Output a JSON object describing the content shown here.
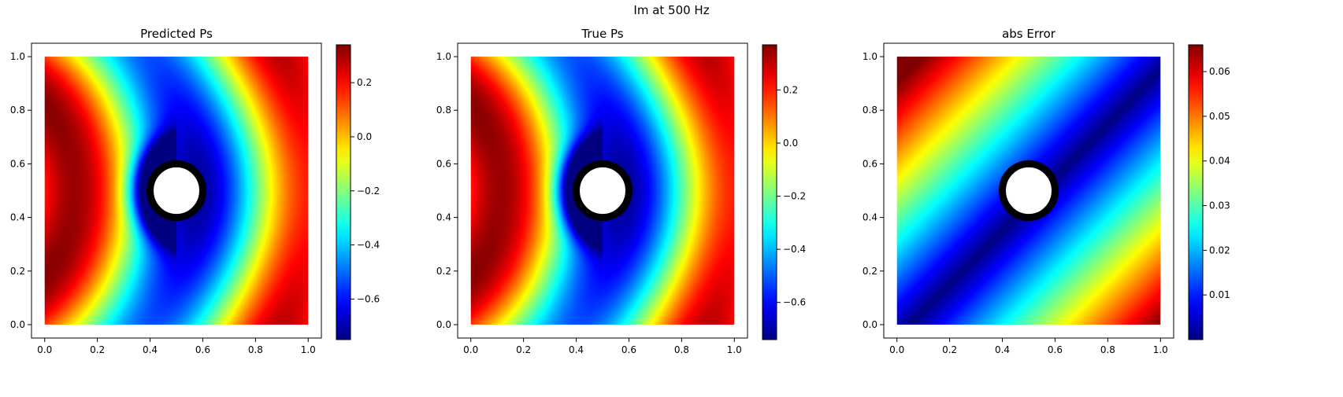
{
  "figure": {
    "suptitle": "Im at 500 Hz"
  },
  "chart_data": [
    {
      "type": "heatmap",
      "title": "Predicted Ps",
      "xlabel": "",
      "ylabel": "",
      "xlim": [
        -0.05,
        1.05
      ],
      "ylim": [
        -0.05,
        1.05
      ],
      "xticks": [
        "0.0",
        "0.2",
        "0.4",
        "0.6",
        "0.8",
        "1.0"
      ],
      "yticks": [
        "0.0",
        "0.2",
        "0.4",
        "0.6",
        "0.8",
        "1.0"
      ],
      "colormap": "jet",
      "colorbar": {
        "min": -0.75,
        "max": 0.34,
        "ticks": [
          "0.2",
          "0.0",
          "−0.2",
          "−0.4",
          "−0.6"
        ],
        "tick_values": [
          0.2,
          0.0,
          -0.2,
          -0.4,
          -0.6
        ]
      },
      "obstacle": {
        "cx": 0.5,
        "cy": 0.5,
        "r": 0.1
      },
      "value_range": [
        -0.75,
        0.34
      ],
      "field": "wave"
    },
    {
      "type": "heatmap",
      "title": "True Ps",
      "xlabel": "",
      "ylabel": "",
      "xlim": [
        -0.05,
        1.05
      ],
      "ylim": [
        -0.05,
        1.05
      ],
      "xticks": [
        "0.0",
        "0.2",
        "0.4",
        "0.6",
        "0.8",
        "1.0"
      ],
      "yticks": [
        "0.0",
        "0.2",
        "0.4",
        "0.6",
        "0.8",
        "1.0"
      ],
      "colormap": "jet",
      "colorbar": {
        "min": -0.74,
        "max": 0.37,
        "ticks": [
          "0.2",
          "0.0",
          "−0.2",
          "−0.4",
          "−0.6"
        ],
        "tick_values": [
          0.2,
          0.0,
          -0.2,
          -0.4,
          -0.6
        ]
      },
      "obstacle": {
        "cx": 0.5,
        "cy": 0.5,
        "r": 0.1
      },
      "value_range": [
        -0.74,
        0.37
      ],
      "field": "wave"
    },
    {
      "type": "heatmap",
      "title": "abs Error",
      "xlabel": "",
      "ylabel": "",
      "xlim": [
        -0.05,
        1.05
      ],
      "ylim": [
        -0.05,
        1.05
      ],
      "xticks": [
        "0.0",
        "0.2",
        "0.4",
        "0.6",
        "0.8",
        "1.0"
      ],
      "yticks": [
        "0.0",
        "0.2",
        "0.4",
        "0.6",
        "0.8",
        "1.0"
      ],
      "colormap": "jet",
      "colorbar": {
        "min": 0.0,
        "max": 0.066,
        "ticks": [
          "0.06",
          "0.05",
          "0.04",
          "0.03",
          "0.02",
          "0.01"
        ],
        "tick_values": [
          0.06,
          0.05,
          0.04,
          0.03,
          0.02,
          0.01
        ]
      },
      "obstacle": {
        "cx": 0.5,
        "cy": 0.5,
        "r": 0.1
      },
      "value_range": [
        0.0,
        0.066
      ],
      "field": "error"
    }
  ]
}
